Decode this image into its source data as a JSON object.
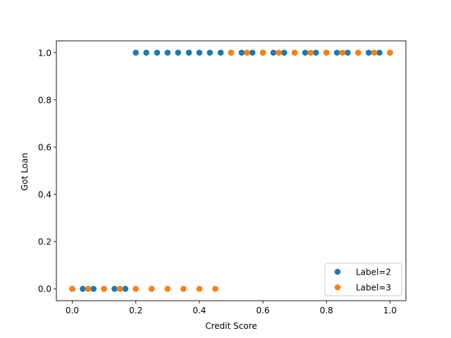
{
  "chart_data": {
    "type": "scatter",
    "xlabel": "Credit Score",
    "ylabel": "Got Loan",
    "xlim": [
      -0.05,
      1.05
    ],
    "ylim": [
      -0.05,
      1.05
    ],
    "xticks": [
      0.0,
      0.2,
      0.4,
      0.6,
      0.8,
      1.0
    ],
    "yticks": [
      0.0,
      0.2,
      0.4,
      0.6,
      0.8,
      1.0
    ],
    "xtick_labels": [
      "0.0",
      "0.2",
      "0.4",
      "0.6",
      "0.8",
      "1.0"
    ],
    "ytick_labels": [
      "0.0",
      "0.2",
      "0.4",
      "0.6",
      "0.8",
      "1.0"
    ],
    "grid": false,
    "legend_position": "lower-right",
    "series": [
      {
        "name": "Label=2",
        "color": "#1f77b4",
        "points": [
          [
            0.0,
            0
          ],
          [
            0.033,
            0
          ],
          [
            0.067,
            0
          ],
          [
            0.1,
            0
          ],
          [
            0.133,
            0
          ],
          [
            0.167,
            0
          ],
          [
            0.2,
            1
          ],
          [
            0.233,
            1
          ],
          [
            0.267,
            1
          ],
          [
            0.3,
            1
          ],
          [
            0.333,
            1
          ],
          [
            0.367,
            1
          ],
          [
            0.4,
            1
          ],
          [
            0.433,
            1
          ],
          [
            0.467,
            1
          ],
          [
            0.5,
            1
          ],
          [
            0.533,
            1
          ],
          [
            0.567,
            1
          ],
          [
            0.6,
            1
          ],
          [
            0.633,
            1
          ],
          [
            0.667,
            1
          ],
          [
            0.7,
            1
          ],
          [
            0.733,
            1
          ],
          [
            0.767,
            1
          ],
          [
            0.8,
            1
          ],
          [
            0.833,
            1
          ],
          [
            0.867,
            1
          ],
          [
            0.9,
            1
          ],
          [
            0.933,
            1
          ],
          [
            0.967,
            1
          ],
          [
            1.0,
            1
          ]
        ]
      },
      {
        "name": "Label=3",
        "color": "#ff7f0e",
        "points": [
          [
            0.0,
            0
          ],
          [
            0.05,
            0
          ],
          [
            0.1,
            0
          ],
          [
            0.15,
            0
          ],
          [
            0.2,
            0
          ],
          [
            0.25,
            0
          ],
          [
            0.3,
            0
          ],
          [
            0.35,
            0
          ],
          [
            0.4,
            0
          ],
          [
            0.45,
            0
          ],
          [
            0.5,
            1
          ],
          [
            0.55,
            1
          ],
          [
            0.6,
            1
          ],
          [
            0.65,
            1
          ],
          [
            0.7,
            1
          ],
          [
            0.75,
            1
          ],
          [
            0.8,
            1
          ],
          [
            0.85,
            1
          ],
          [
            0.9,
            1
          ],
          [
            0.95,
            1
          ],
          [
            1.0,
            1
          ]
        ]
      }
    ]
  }
}
